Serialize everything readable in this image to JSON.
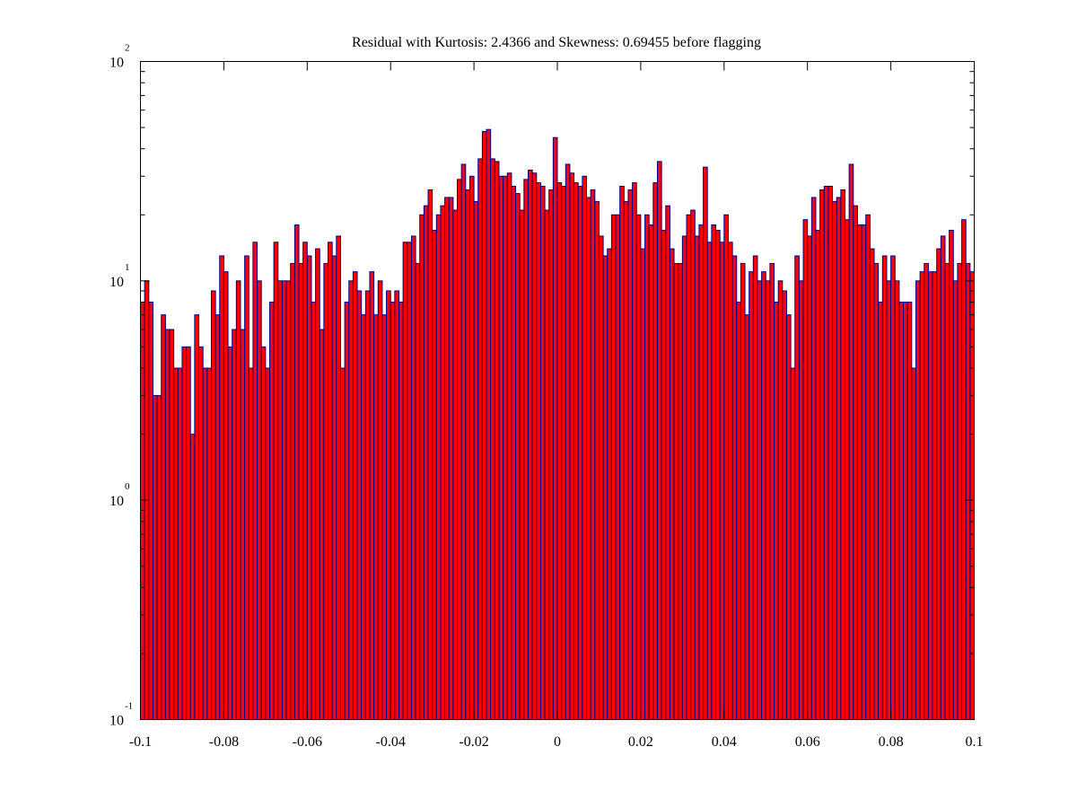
{
  "chart_data": {
    "type": "bar",
    "title": "Residual with Kurtosis: 2.4366 and Skewness: 0.69455 before flagging",
    "xlabel": "",
    "ylabel": "",
    "x_scale": "linear",
    "y_scale": "log",
    "xlim": [
      -0.1,
      0.1
    ],
    "ylim": [
      0.1,
      100
    ],
    "x_ticks": [
      {
        "value": -0.1,
        "label": "-0.1"
      },
      {
        "value": -0.08,
        "label": "-0.08"
      },
      {
        "value": -0.06,
        "label": "-0.06"
      },
      {
        "value": -0.04,
        "label": "-0.04"
      },
      {
        "value": -0.02,
        "label": "-0.02"
      },
      {
        "value": 0,
        "label": "0"
      },
      {
        "value": 0.02,
        "label": "0.02"
      },
      {
        "value": 0.04,
        "label": "0.04"
      },
      {
        "value": 0.06,
        "label": "0.06"
      },
      {
        "value": 0.08,
        "label": "0.08"
      },
      {
        "value": 0.1,
        "label": "0.1"
      }
    ],
    "y_ticks": [
      {
        "value": 0.1,
        "base": "10",
        "exponent": "-1"
      },
      {
        "value": 1,
        "base": "10",
        "exponent": "0"
      },
      {
        "value": 10,
        "base": "10",
        "exponent": "1"
      },
      {
        "value": 100,
        "base": "10",
        "exponent": "2"
      }
    ],
    "grid": false,
    "legend": "none",
    "colors": {
      "bar_fill": "#ff0000",
      "bar_edge": "#00008b",
      "axis": "#000000"
    },
    "bin_range": [
      -0.1,
      0.1
    ],
    "bin_count": 200,
    "values": [
      8,
      10,
      8,
      3,
      3,
      7,
      6,
      6,
      4,
      4,
      5,
      5,
      2,
      7,
      5,
      4,
      4,
      9,
      7,
      13,
      11,
      5,
      6,
      10,
      6,
      13,
      4,
      15,
      10,
      5,
      4,
      8,
      15,
      10,
      10,
      10,
      12,
      18,
      12,
      15,
      13,
      8,
      14,
      6,
      12,
      15,
      13,
      16,
      4,
      8,
      10,
      11,
      9,
      7,
      9,
      11,
      7,
      10,
      7,
      9,
      8,
      9,
      8,
      15,
      15,
      16,
      12,
      20,
      22,
      26,
      17,
      20,
      22,
      24,
      24,
      21,
      29,
      34,
      26,
      30,
      23,
      36,
      48,
      49,
      36,
      35,
      30,
      30,
      31,
      27,
      25,
      21,
      29,
      32,
      31,
      28,
      27,
      21,
      26,
      45,
      28,
      27,
      34,
      31,
      28,
      27,
      30,
      24,
      26,
      23,
      16,
      13,
      14,
      20,
      20,
      27,
      23,
      26,
      28,
      20,
      14,
      20,
      18,
      28,
      35,
      17,
      22,
      14,
      12,
      12,
      16,
      20,
      21,
      16,
      18,
      33,
      15,
      18,
      17,
      15,
      20,
      15,
      13,
      8,
      12,
      7,
      11,
      13,
      10,
      11,
      10,
      12,
      8,
      10,
      9,
      7,
      4,
      13,
      10,
      19,
      16,
      24,
      17,
      26,
      27,
      27,
      23,
      24,
      26,
      19,
      34,
      22,
      18,
      18,
      20,
      14,
      12,
      8,
      13,
      10,
      13,
      10,
      8,
      8,
      8,
      4,
      10,
      11,
      12,
      11,
      11,
      14,
      16,
      12,
      17,
      10,
      12,
      19,
      12,
      11
    ]
  }
}
